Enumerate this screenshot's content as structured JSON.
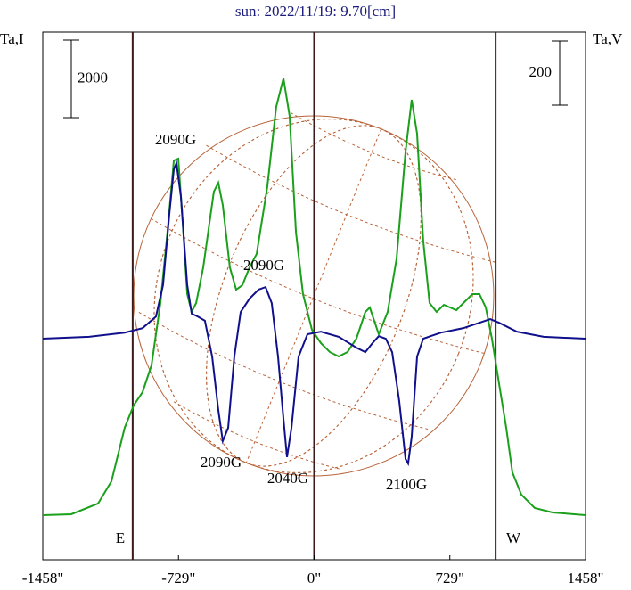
{
  "chart_data": {
    "type": "line",
    "title": "sun: 2022/11/19: 9.70[cm]",
    "y_label": "Ta,I",
    "y2_label": "Ta,V",
    "xlim": [
      -1458,
      1458
    ],
    "xticks": [
      {
        "value": -1458,
        "label": "-1458\""
      },
      {
        "value": -729,
        "label": "-729\""
      },
      {
        "value": 0,
        "label": "0\""
      },
      {
        "value": 729,
        "label": "729\""
      },
      {
        "value": 1458,
        "label": "1458\""
      }
    ],
    "ylim": [
      -1150,
      12460
    ],
    "y2lim": [
      -689,
      956
    ],
    "scale_bar": 2000,
    "scale_bar_y2": 200,
    "limb_lines": [
      -975,
      0,
      975
    ],
    "limb_labels": [
      "E",
      "W"
    ],
    "annotations": [
      "2090G",
      "2090G",
      "2090G",
      "2040G",
      "2100G"
    ],
    "series": [
      {
        "name": "Ta,I",
        "color": "#1aa01a",
        "x": [
          -1458,
          -1305,
          -1161,
          -1089,
          -1018,
          -970,
          -922,
          -874,
          -826,
          -788,
          -754,
          -730,
          -706,
          -682,
          -658,
          -634,
          -596,
          -539,
          -515,
          -491,
          -453,
          -419,
          -386,
          -347,
          -309,
          -252,
          -204,
          -165,
          -132,
          -98,
          -60,
          -12,
          36,
          84,
          132,
          179,
          227,
          275,
          299,
          323,
          347,
          395,
          443,
          491,
          524,
          553,
          586,
          620,
          658,
          697,
          730,
          764,
          802,
          850,
          888,
          922,
          955,
          993,
          1032,
          1065,
          1113,
          1185,
          1281,
          1458
        ],
        "values": [
          0,
          23,
          299,
          874,
          2253,
          2828,
          3172,
          3862,
          5471,
          7310,
          9149,
          9195,
          7540,
          5701,
          5241,
          5471,
          6391,
          8345,
          8575,
          8000,
          6391,
          5816,
          5931,
          6391,
          6736,
          8460,
          10529,
          11264,
          10299,
          7310,
          5701,
          4782,
          4437,
          4207,
          4092,
          4207,
          4552,
          5241,
          5356,
          5011,
          4667,
          5241,
          6621,
          9379,
          10713,
          9839,
          7080,
          5471,
          5241,
          5425,
          5356,
          5287,
          5471,
          5701,
          5701,
          5356,
          4552,
          3402,
          2253,
          1103,
          529,
          184,
          69,
          0
        ]
      },
      {
        "name": "Ta,V",
        "color": "#10108c",
        "axis": "y2",
        "x": [
          -1458,
          -1209,
          -1018,
          -922,
          -850,
          -812,
          -778,
          -754,
          -740,
          -716,
          -682,
          -658,
          -625,
          -587,
          -548,
          -515,
          -491,
          -462,
          -429,
          -395,
          -347,
          -299,
          -261,
          -228,
          -194,
          -165,
          -146,
          -122,
          -84,
          -36,
          36,
          132,
          227,
          275,
          313,
          347,
          385,
          419,
          457,
          491,
          505,
          524,
          553,
          586,
          625,
          682,
          802,
          946,
          993,
          1089,
          1233,
          1458
        ],
        "values": [
          0,
          6,
          19,
          33,
          69,
          167,
          389,
          528,
          547,
          444,
          167,
          78,
          69,
          56,
          -56,
          -222,
          -319,
          -278,
          -56,
          83,
          125,
          153,
          161,
          111,
          -56,
          -250,
          -369,
          -278,
          -56,
          14,
          22,
          6,
          -28,
          -42,
          -14,
          8,
          0,
          -42,
          -194,
          -375,
          -389,
          -306,
          -56,
          0,
          8,
          19,
          33,
          61,
          50,
          22,
          6,
          0
        ]
      }
    ]
  }
}
